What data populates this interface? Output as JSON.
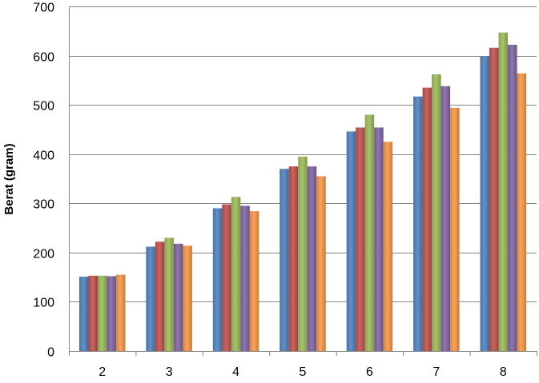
{
  "chart_data": {
    "type": "bar",
    "title": "",
    "xlabel": "",
    "ylabel": "Berat (gram)",
    "ylim": [
      0,
      700
    ],
    "yticks": [
      0,
      100,
      200,
      300,
      400,
      500,
      600,
      700
    ],
    "grid": true,
    "legend": "none",
    "categories": [
      "2",
      "3",
      "4",
      "5",
      "6",
      "7",
      "8"
    ],
    "series": [
      {
        "values": [
          151,
          212,
          290,
          370,
          446,
          517,
          599
        ],
        "color": "#4F81BD"
      },
      {
        "values": [
          153,
          222,
          298,
          375,
          454,
          535,
          616
        ],
        "color": "#C0504D"
      },
      {
        "values": [
          153,
          230,
          313,
          395,
          480,
          562,
          647
        ],
        "color": "#9BBB59"
      },
      {
        "values": [
          152,
          218,
          295,
          375,
          454,
          538,
          622
        ],
        "color": "#8064A2"
      },
      {
        "values": [
          155,
          214,
          284,
          355,
          425,
          494,
          564
        ],
        "color": "#F79646"
      }
    ]
  }
}
